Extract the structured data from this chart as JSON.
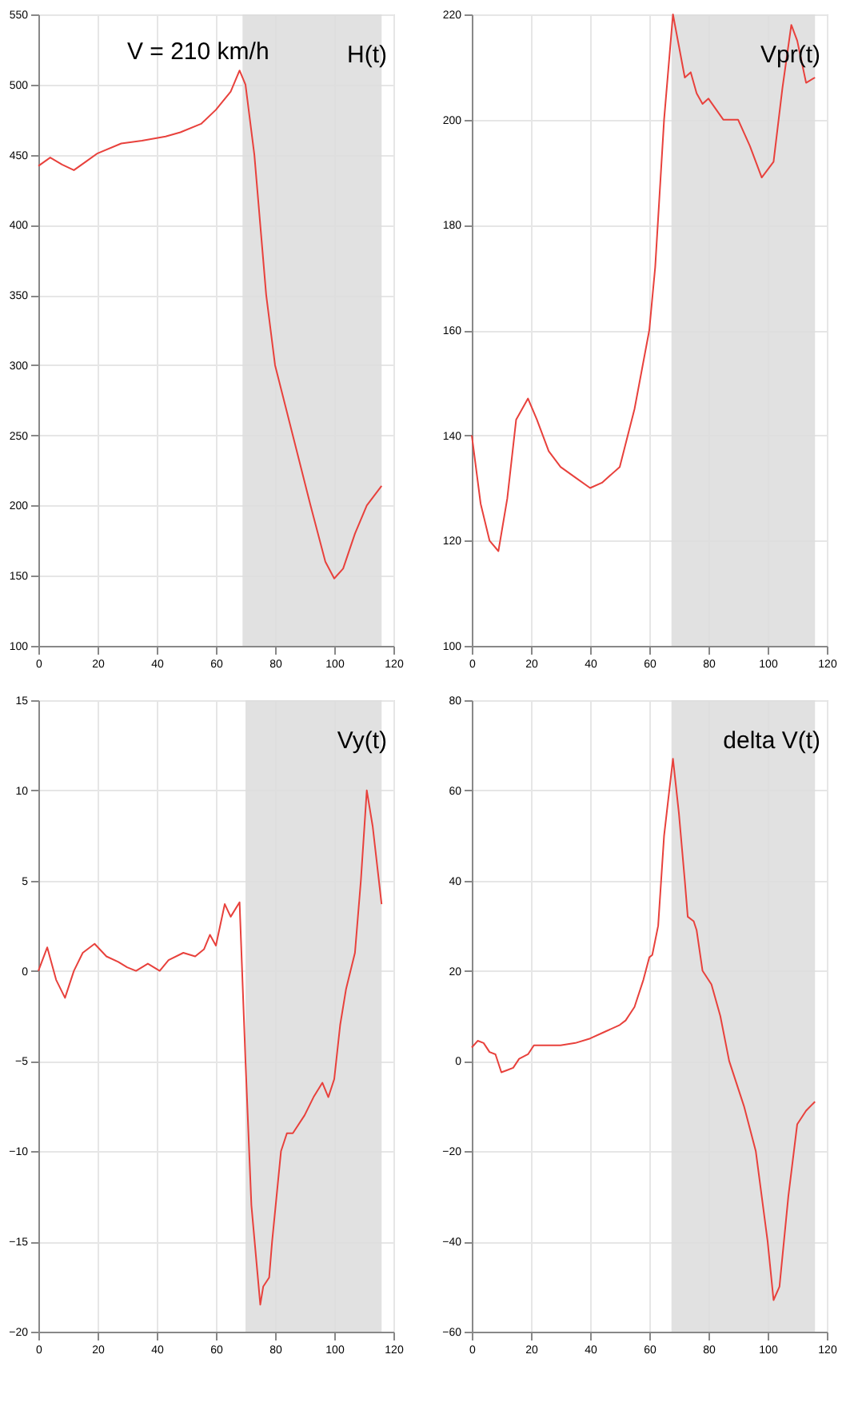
{
  "chart_data": [
    {
      "type": "line",
      "annotations": [
        "V = 210 km/h",
        "H(t)"
      ],
      "xlim": [
        0,
        120
      ],
      "xticks": [
        0,
        20,
        40,
        60,
        80,
        100,
        120
      ],
      "ylim": [
        100,
        550
      ],
      "yticks": [
        100,
        150,
        200,
        250,
        300,
        350,
        400,
        450,
        500,
        550
      ],
      "grid": true,
      "bands": [
        {
          "axis": "x",
          "from": 69,
          "to": 116,
          "color": "#dcdcdc"
        }
      ],
      "series": [
        {
          "color": "#e8413c",
          "x": [
            0,
            4,
            8,
            12,
            16,
            20,
            28,
            35,
            43,
            48,
            55,
            60,
            65,
            68,
            70,
            73,
            75,
            77,
            80,
            86,
            92,
            97,
            100,
            103,
            107,
            111,
            116
          ],
          "values": [
            442,
            448,
            443,
            439,
            445,
            451,
            458,
            460,
            463,
            466,
            472,
            482,
            495,
            510,
            500,
            450,
            400,
            350,
            300,
            250,
            200,
            160,
            148,
            155,
            180,
            200,
            214
          ]
        }
      ]
    },
    {
      "type": "line",
      "annotations": [
        "Vpr(t)"
      ],
      "xlim": [
        0,
        120
      ],
      "xticks": [
        0,
        20,
        40,
        60,
        80,
        100,
        120
      ],
      "ylim": [
        100,
        220
      ],
      "yticks": [
        100,
        120,
        140,
        160,
        180,
        200,
        220
      ],
      "grid": true,
      "bands": [
        {
          "axis": "x",
          "from": 67.5,
          "to": 116,
          "color": "#dcdcdc"
        }
      ],
      "series": [
        {
          "color": "#e8413c",
          "x": [
            0,
            3,
            6,
            9,
            12,
            15,
            19,
            22,
            26,
            30,
            35,
            40,
            44,
            50,
            55,
            60,
            62,
            65,
            68,
            70,
            72,
            74,
            76,
            78,
            80,
            85,
            90,
            94,
            98,
            102,
            105,
            108,
            110,
            113,
            116
          ],
          "values": [
            140,
            127,
            120,
            118,
            128,
            143,
            147,
            143,
            137,
            134,
            132,
            130,
            131,
            134,
            145,
            160,
            172,
            200,
            220,
            214,
            208,
            209,
            205,
            203,
            204,
            200,
            200,
            195,
            189,
            192,
            206,
            218,
            215,
            207,
            208
          ]
        }
      ]
    },
    {
      "type": "line",
      "annotations": [
        "Vy(t)"
      ],
      "xlim": [
        0,
        120
      ],
      "xticks": [
        0,
        20,
        40,
        60,
        80,
        100,
        120
      ],
      "ylim": [
        -20,
        15
      ],
      "yticks": [
        -20,
        -15,
        -10,
        -5,
        0,
        5,
        10,
        15
      ],
      "grid": true,
      "bands": [
        {
          "axis": "x",
          "from": 70,
          "to": 116,
          "color": "#dcdcdc"
        }
      ],
      "series": [
        {
          "color": "#e8413c",
          "x": [
            0,
            3,
            6,
            9,
            12,
            15,
            19,
            23,
            27,
            30,
            33,
            37,
            41,
            44,
            49,
            53,
            56,
            58,
            60,
            63,
            65,
            68,
            70,
            72,
            75,
            76,
            78,
            79,
            82,
            84,
            86,
            90,
            93,
            96,
            98,
            100,
            102,
            104,
            107,
            109,
            111,
            113,
            116
          ],
          "values": [
            0,
            1.3,
            -0.5,
            -1.5,
            0,
            1,
            1.5,
            0.8,
            0.5,
            0.2,
            0,
            0.4,
            0,
            0.6,
            1,
            0.8,
            1.2,
            2,
            1.4,
            3.7,
            3,
            3.8,
            -5,
            -13,
            -18.5,
            -17.5,
            -17,
            -15,
            -10,
            -9,
            -9,
            -8,
            -7,
            -6.2,
            -7,
            -6,
            -3,
            -1,
            1,
            5,
            10,
            8,
            3.7
          ]
        }
      ]
    },
    {
      "type": "line",
      "annotations": [
        "delta V(t)"
      ],
      "xlim": [
        0,
        120
      ],
      "xticks": [
        0,
        20,
        40,
        60,
        80,
        100,
        120
      ],
      "ylim": [
        -60,
        80
      ],
      "yticks": [
        -60,
        -40,
        -20,
        0,
        20,
        40,
        60,
        80
      ],
      "grid": true,
      "bands": [
        {
          "axis": "x",
          "from": 67.5,
          "to": 116,
          "color": "#dcdcdc"
        }
      ],
      "series": [
        {
          "color": "#e8413c",
          "x": [
            0,
            2,
            4,
            6,
            8,
            10,
            12,
            14,
            16,
            19,
            21,
            25,
            30,
            35,
            40,
            45,
            50,
            52,
            55,
            58,
            60,
            61,
            63,
            65,
            68,
            70,
            72,
            73,
            75,
            76,
            78,
            81,
            84,
            87,
            92,
            96,
            100,
            102,
            104,
            107,
            110,
            113,
            116
          ],
          "values": [
            3,
            4.5,
            4,
            2,
            1.5,
            -2.5,
            -2,
            -1.5,
            0.5,
            1.5,
            3.5,
            3.5,
            3.5,
            4,
            5,
            6.5,
            8,
            9,
            12,
            18,
            23,
            23.5,
            30,
            50,
            67,
            55,
            40,
            32,
            31,
            29,
            20,
            17,
            10,
            0,
            -10,
            -20,
            -40,
            -53,
            -50,
            -30,
            -14,
            -11,
            -9
          ]
        }
      ]
    }
  ]
}
